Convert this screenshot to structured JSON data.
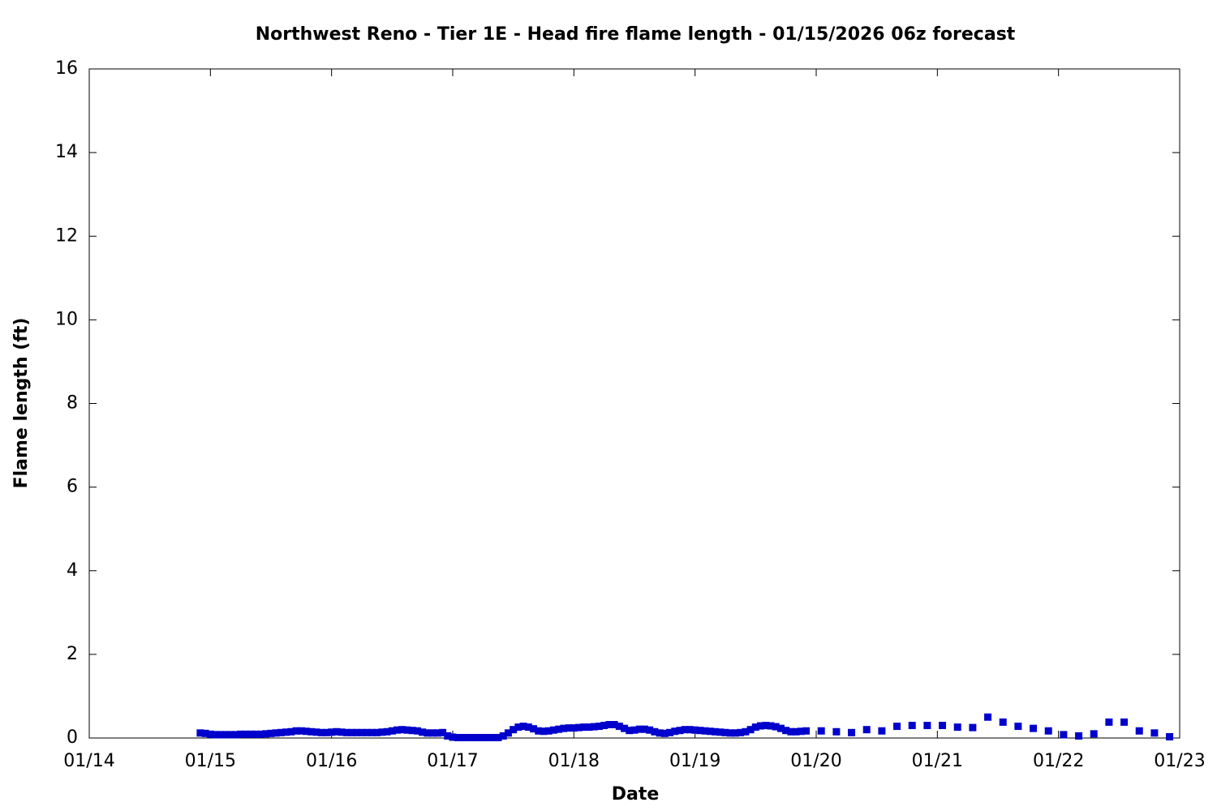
{
  "chart_data": {
    "type": "scatter",
    "title": "Northwest Reno - Tier 1E - Head fire flame length - 01/15/2026 06z forecast",
    "x_label": "Date",
    "y_label": "Flame length (ft)",
    "xlim": [
      0,
      216
    ],
    "xticks": [
      {
        "value": 0,
        "label": "01/14"
      },
      {
        "value": 24,
        "label": "01/15"
      },
      {
        "value": 48,
        "label": "01/16"
      },
      {
        "value": 72,
        "label": "01/17"
      },
      {
        "value": 96,
        "label": "01/18"
      },
      {
        "value": 120,
        "label": "01/19"
      },
      {
        "value": 144,
        "label": "01/20"
      },
      {
        "value": 168,
        "label": "01/21"
      },
      {
        "value": 192,
        "label": "01/22"
      },
      {
        "value": 216,
        "label": "01/23"
      }
    ],
    "ylim": [
      0,
      16
    ],
    "yticks": [
      0,
      2,
      4,
      6,
      8,
      10,
      12,
      14,
      16
    ],
    "series": [
      {
        "color": "#0000cc",
        "x": [
          22,
          23,
          24,
          25,
          26,
          27,
          28,
          29,
          30,
          31,
          32,
          33,
          34,
          35,
          36,
          37,
          38,
          39,
          40,
          41,
          42,
          43,
          44,
          45,
          46,
          47,
          48,
          49,
          50,
          51,
          52,
          53,
          54,
          55,
          56,
          57,
          58,
          59,
          60,
          61,
          62,
          63,
          64,
          65,
          66,
          67,
          68,
          69,
          70,
          71,
          72,
          73,
          74,
          75,
          76,
          77,
          78,
          79,
          80,
          81,
          82,
          83,
          84,
          85,
          86,
          87,
          88,
          89,
          90,
          91,
          92,
          93,
          94,
          95,
          96,
          97,
          98,
          99,
          100,
          101,
          102,
          103,
          104,
          105,
          106,
          107,
          108,
          109,
          110,
          111,
          112,
          113,
          114,
          115,
          116,
          117,
          118,
          119,
          120,
          121,
          122,
          123,
          124,
          125,
          126,
          127,
          128,
          129,
          130,
          131,
          132,
          133,
          134,
          135,
          136,
          137,
          138,
          139,
          140,
          141,
          142,
          145,
          148,
          151,
          154,
          157,
          160,
          163,
          166,
          169,
          172,
          175,
          178,
          181,
          184,
          187,
          190,
          193,
          196,
          199,
          202,
          205,
          208,
          211,
          214
        ],
        "values": [
          0.12,
          0.11,
          0.09,
          0.08,
          0.08,
          0.08,
          0.08,
          0.08,
          0.09,
          0.09,
          0.09,
          0.09,
          0.09,
          0.1,
          0.11,
          0.12,
          0.13,
          0.14,
          0.15,
          0.17,
          0.17,
          0.16,
          0.15,
          0.14,
          0.13,
          0.13,
          0.14,
          0.15,
          0.14,
          0.13,
          0.13,
          0.13,
          0.13,
          0.13,
          0.13,
          0.13,
          0.14,
          0.15,
          0.17,
          0.19,
          0.2,
          0.19,
          0.18,
          0.17,
          0.14,
          0.12,
          0.12,
          0.12,
          0.13,
          0.05,
          0.02,
          0.01,
          0.01,
          0.01,
          0.01,
          0.01,
          0.01,
          0.01,
          0.01,
          0.01,
          0.05,
          0.12,
          0.2,
          0.26,
          0.28,
          0.26,
          0.22,
          0.17,
          0.16,
          0.17,
          0.19,
          0.21,
          0.23,
          0.24,
          0.24,
          0.25,
          0.26,
          0.26,
          0.27,
          0.28,
          0.3,
          0.32,
          0.32,
          0.28,
          0.23,
          0.18,
          0.19,
          0.21,
          0.21,
          0.19,
          0.15,
          0.12,
          0.11,
          0.13,
          0.16,
          0.18,
          0.2,
          0.2,
          0.19,
          0.18,
          0.17,
          0.16,
          0.15,
          0.14,
          0.13,
          0.12,
          0.12,
          0.13,
          0.15,
          0.2,
          0.26,
          0.29,
          0.3,
          0.29,
          0.27,
          0.23,
          0.18,
          0.15,
          0.15,
          0.16,
          0.17,
          0.17,
          0.15,
          0.13,
          0.2,
          0.17,
          0.28,
          0.3,
          0.3,
          0.3,
          0.26,
          0.25,
          0.5,
          0.38,
          0.28,
          0.23,
          0.17,
          0.08,
          0.05,
          0.1,
          0.38,
          0.38,
          0.17,
          0.12,
          0.03
        ]
      }
    ]
  }
}
